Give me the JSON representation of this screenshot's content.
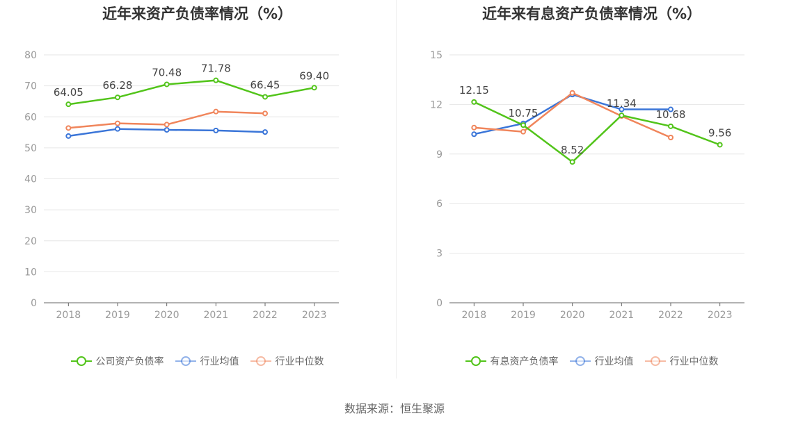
{
  "source_text": "数据来源：恒生聚源",
  "chart_data": [
    {
      "type": "line",
      "title": "近年来资产负债率情况（%）",
      "categories": [
        "2018",
        "2019",
        "2020",
        "2021",
        "2022",
        "2023"
      ],
      "ylim": [
        0,
        80
      ],
      "yticks": [
        0,
        10,
        20,
        30,
        40,
        50,
        60,
        70,
        80
      ],
      "grid": true,
      "legend_position": "bottom",
      "series": [
        {
          "name": "公司资产负债率",
          "color": "#52c41a",
          "values": [
            64.05,
            66.28,
            70.48,
            71.78,
            66.45,
            69.4
          ],
          "labels": [
            "64.05",
            "66.28",
            "70.48",
            "71.78",
            "66.45",
            "69.40"
          ]
        },
        {
          "name": "行业均值",
          "color": "#3a75d8",
          "values": [
            53.8,
            56.1,
            55.8,
            55.6,
            55.1,
            null
          ]
        },
        {
          "name": "行业中位数",
          "color": "#f0855b",
          "values": [
            56.4,
            57.9,
            57.5,
            61.7,
            61.1,
            null
          ]
        }
      ]
    },
    {
      "type": "line",
      "title": "近年来有息资产负债率情况（%）",
      "categories": [
        "2018",
        "2019",
        "2020",
        "2021",
        "2022",
        "2023"
      ],
      "ylim": [
        0,
        15
      ],
      "yticks": [
        0,
        3,
        6,
        9,
        12,
        15
      ],
      "grid": true,
      "legend_position": "bottom",
      "series": [
        {
          "name": "有息资产负债率",
          "color": "#52c41a",
          "values": [
            12.15,
            10.75,
            8.52,
            11.34,
            10.68,
            9.56
          ],
          "labels": [
            "12.15",
            "10.75",
            "8.52",
            "11.34",
            "10.68",
            "9.56"
          ]
        },
        {
          "name": "行业均值",
          "color": "#3a75d8",
          "values": [
            10.2,
            10.85,
            12.6,
            11.7,
            11.7,
            null
          ]
        },
        {
          "name": "行业中位数",
          "color": "#f0855b",
          "values": [
            10.6,
            10.35,
            12.7,
            11.3,
            10.0,
            null
          ]
        }
      ]
    }
  ]
}
